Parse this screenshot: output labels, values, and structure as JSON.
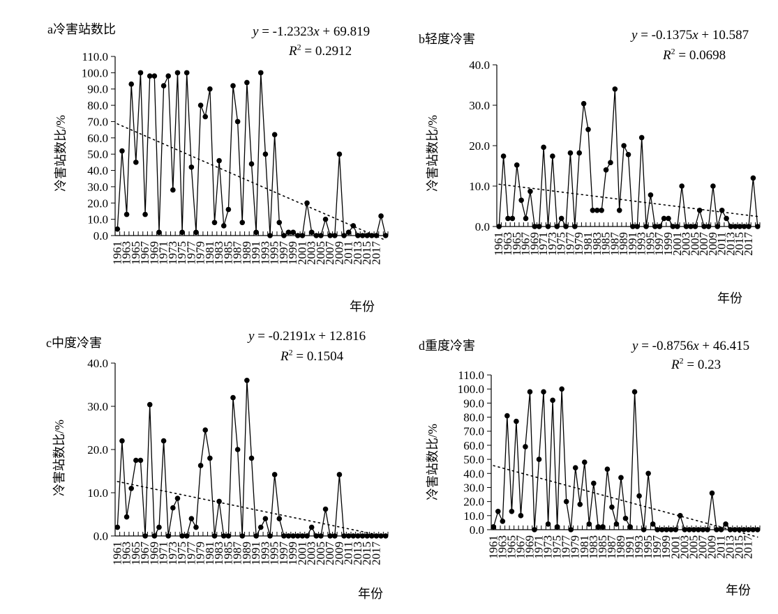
{
  "chart_data": [
    {
      "type": "line",
      "panel_label": "a冷害站数比",
      "equation": {
        "y": "y",
        "rhs": " = -1.2323",
        "x": "x",
        "tail": " + 69.819"
      },
      "r2": {
        "R": "R",
        "sup": "2",
        "rhs": " = 0.2912"
      },
      "trendline": {
        "slope": -1.2323,
        "intercept": 69.819
      },
      "xlabel": "年份",
      "ylabel": "冷害站数比/%",
      "ylim": [
        0,
        110
      ],
      "yticks": [
        "0.0",
        "10.0",
        "20.0",
        "30.0",
        "40.0",
        "50.0",
        "60.0",
        "70.0",
        "80.0",
        "90.0",
        "100.0",
        "110.0"
      ],
      "xticks": [
        "1961",
        "1963",
        "1965",
        "1967",
        "1969",
        "1971",
        "1973",
        "1975",
        "1977",
        "1979",
        "1981",
        "1983",
        "1985",
        "1987",
        "1989",
        "1991",
        "1993",
        "1995",
        "1997",
        "1999",
        "2001",
        "2003",
        "2005",
        "2007",
        "2009",
        "2011",
        "2013",
        "2015",
        "2017"
      ],
      "years": [
        1961,
        2019
      ],
      "values": [
        4,
        52,
        13,
        93,
        45,
        100,
        13,
        98,
        98,
        2,
        92,
        98,
        28,
        100,
        2,
        100,
        42,
        2,
        80,
        73,
        90,
        8,
        46,
        6,
        16,
        92,
        70,
        8,
        94,
        44,
        2,
        100,
        50,
        0,
        62,
        8,
        0,
        2,
        2,
        0,
        0,
        20,
        2,
        0,
        0,
        10,
        0,
        0,
        50,
        0,
        2,
        6,
        0,
        0,
        0,
        0,
        0,
        12,
        0
      ]
    },
    {
      "type": "line",
      "panel_label": "b轻度冷害",
      "equation": {
        "y": "y",
        "rhs": " = -0.1375",
        "x": "x",
        "tail": " + 10.587"
      },
      "r2": {
        "R": "R",
        "sup": "2",
        "rhs": " = 0.0698"
      },
      "trendline": {
        "slope": -0.1375,
        "intercept": 10.587
      },
      "xlabel": "年份",
      "ylabel": "冷害站数比/%",
      "ylim": [
        0,
        40
      ],
      "yticks": [
        "0.0",
        "10.0",
        "20.0",
        "30.0",
        "40.0"
      ],
      "xticks": [
        "1961",
        "1963",
        "1965",
        "1967",
        "1969",
        "1971",
        "1973",
        "1975",
        "1977",
        "1979",
        "1981",
        "1983",
        "1985",
        "1987",
        "1989",
        "1991",
        "1993",
        "1995",
        "1997",
        "1999",
        "2001",
        "2003",
        "2005",
        "2007",
        "2009",
        "2011",
        "2013",
        "2015",
        "2017"
      ],
      "years": [
        1961,
        2019
      ],
      "values": [
        0,
        17.4,
        2,
        2,
        15.2,
        6.5,
        2,
        8.7,
        0,
        0,
        19.6,
        0,
        17.4,
        0,
        2,
        0,
        18.2,
        0,
        18.2,
        30.4,
        24,
        4,
        4,
        4,
        14,
        15.8,
        34,
        4,
        20,
        17.8,
        0,
        0,
        22,
        0,
        7.8,
        0,
        0,
        2,
        2,
        0,
        0,
        10,
        0,
        0,
        0,
        4,
        0,
        0,
        10,
        0,
        4,
        2,
        0,
        0,
        0,
        0,
        0,
        12,
        0
      ]
    },
    {
      "type": "line",
      "panel_label": "c中度冷害",
      "equation": {
        "y": "y",
        "rhs": " = -0.2191",
        "x": "x",
        "tail": " + 12.816"
      },
      "r2": {
        "R": "R",
        "sup": "2",
        "rhs": " = 0.1504"
      },
      "trendline": {
        "slope": -0.2191,
        "intercept": 12.816
      },
      "xlabel": "年份",
      "ylabel": "冷害站数比/%",
      "ylim": [
        0,
        40
      ],
      "yticks": [
        "0.0",
        "10.0",
        "20.0",
        "30.0",
        "40.0"
      ],
      "xticks": [
        "1961",
        "1963",
        "1965",
        "1967",
        "1969",
        "1971",
        "1973",
        "1975",
        "1977",
        "1979",
        "1981",
        "1983",
        "1985",
        "1987",
        "1989",
        "1991",
        "1993",
        "1995",
        "1997",
        "1999",
        "2001",
        "2003",
        "2005",
        "2007",
        "2009",
        "2011",
        "2013",
        "2015",
        "2017"
      ],
      "years": [
        1961,
        2019
      ],
      "values": [
        2,
        22,
        4.4,
        11,
        17.5,
        17.5,
        0,
        30.4,
        0,
        2,
        22,
        0,
        6.5,
        8.7,
        0,
        0,
        4,
        2,
        16.3,
        24.5,
        18,
        0,
        8,
        0,
        0,
        32,
        20,
        0,
        36,
        18,
        0,
        2,
        4,
        0,
        14.2,
        4,
        0,
        0,
        0,
        0,
        0,
        0,
        2,
        0,
        0,
        6.2,
        0,
        0,
        14.2,
        0,
        0,
        0,
        0,
        0,
        0,
        0,
        0,
        0,
        0
      ]
    },
    {
      "type": "line",
      "panel_label": "d重度冷害",
      "equation": {
        "y": "y",
        "rhs": " = -0.8756",
        "x": "x",
        "tail": " + 46.415"
      },
      "r2": {
        "R": "R",
        "sup": "2",
        "rhs": " = 0.23"
      },
      "trendline": {
        "slope": -0.8756,
        "intercept": 46.415
      },
      "xlabel": "年份",
      "ylabel": "冷害站数比/%",
      "ylim": [
        0,
        110
      ],
      "yticks": [
        "0.0",
        "10.0",
        "20.0",
        "30.0",
        "40.0",
        "50.0",
        "60.0",
        "70.0",
        "80.0",
        "90.0",
        "100.0",
        "110.0"
      ],
      "xticks": [
        "1961",
        "1963",
        "1965",
        "1967",
        "1969",
        "1971",
        "1973",
        "1975",
        "1977",
        "1979",
        "1981",
        "1983",
        "1985",
        "1987",
        "1989",
        "1991",
        "1993",
        "1995",
        "1997",
        "1999",
        "2001",
        "2003",
        "2005",
        "2007",
        "2009",
        "2011",
        "2013",
        "2015",
        "2017"
      ],
      "years": [
        1961,
        2019
      ],
      "values": [
        2,
        13,
        6,
        81,
        13,
        77,
        10,
        59,
        98,
        0,
        50,
        98,
        4,
        92,
        2,
        100,
        20,
        0,
        44,
        18,
        48,
        4,
        33,
        2,
        2,
        43,
        16,
        4,
        37,
        8,
        2,
        98,
        24,
        0,
        40,
        4,
        0,
        0,
        0,
        0,
        0,
        10,
        0,
        0,
        0,
        0,
        0,
        0,
        26,
        0,
        0,
        4,
        0,
        0,
        0,
        0,
        0,
        0,
        0
      ]
    }
  ]
}
